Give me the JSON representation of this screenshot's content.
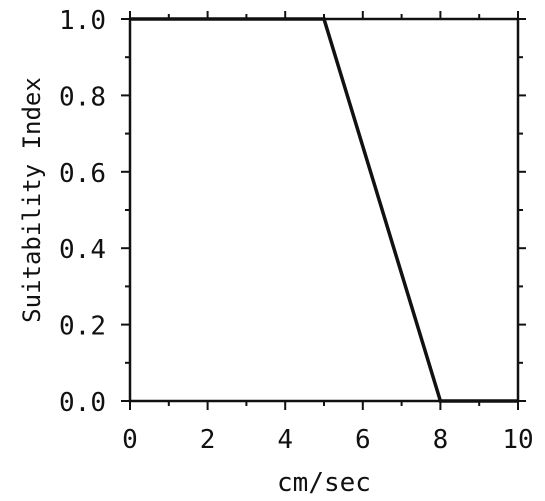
{
  "chart_data": {
    "type": "line",
    "title": "",
    "xlabel": "cm/sec",
    "ylabel": "Suitability Index",
    "xlim": [
      0,
      10
    ],
    "ylim": [
      0,
      1.0
    ],
    "x_ticks": [
      "0",
      "2",
      "4",
      "6",
      "8",
      "10"
    ],
    "y_ticks": [
      "0.0",
      "0.2",
      "0.4",
      "0.6",
      "0.8",
      "1.0"
    ],
    "grid": false,
    "series": [
      {
        "x": [
          0,
          5,
          8,
          10
        ],
        "y": [
          1.0,
          1.0,
          0.0,
          0.0
        ]
      }
    ],
    "colors": {
      "line": "#111111",
      "axis": "#111111"
    }
  }
}
